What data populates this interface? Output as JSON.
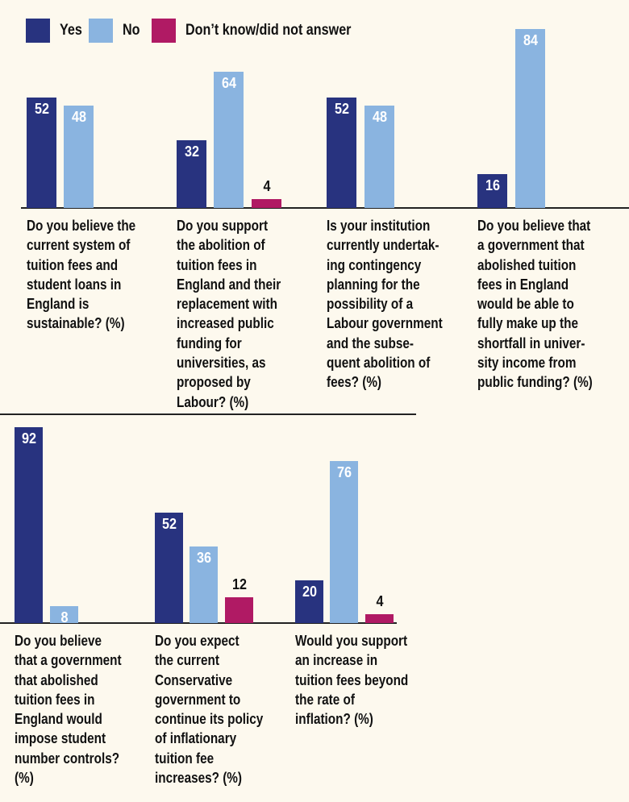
{
  "colors": {
    "yes": "#28337f",
    "no": "#8ab4e0",
    "dont_know": "#b01a64"
  },
  "legend": [
    {
      "key": "yes",
      "label": "Yes"
    },
    {
      "key": "no",
      "label": "No"
    },
    {
      "key": "dont_know",
      "label": "Don’t know/did not answer"
    }
  ],
  "chart_data": [
    {
      "type": "bar",
      "ylabel": "%",
      "ylim": [
        0,
        100
      ],
      "series_names": [
        "Yes",
        "No",
        "Don’t know/did not answer"
      ],
      "values": [
        52,
        48,
        null
      ],
      "question_lines": [
        "Do you believe the",
        "current system of",
        "tuition fees and",
        "student loans in",
        "England is",
        "sustainable? (%)"
      ]
    },
    {
      "type": "bar",
      "ylabel": "%",
      "ylim": [
        0,
        100
      ],
      "series_names": [
        "Yes",
        "No",
        "Don’t know/did not answer"
      ],
      "values": [
        32,
        64,
        4
      ],
      "question_lines": [
        "Do you support",
        "the abolition of",
        "tuition fees in",
        "England and their",
        "replacement with",
        "increased public",
        "funding for",
        "universities, as",
        "proposed by",
        "Labour? (%)"
      ]
    },
    {
      "type": "bar",
      "ylabel": "%",
      "ylim": [
        0,
        100
      ],
      "series_names": [
        "Yes",
        "No",
        "Don’t know/did not answer"
      ],
      "values": [
        52,
        48,
        null
      ],
      "question_lines": [
        "Is your institution",
        "currently undertak-",
        "ing contingency",
        "planning for the",
        "possibility of a",
        "Labour government",
        "and the subse-",
        "quent abolition of",
        "fees? (%)"
      ]
    },
    {
      "type": "bar",
      "ylabel": "%",
      "ylim": [
        0,
        100
      ],
      "series_names": [
        "Yes",
        "No",
        "Don’t know/did not answer"
      ],
      "values": [
        16,
        84,
        null
      ],
      "question_lines": [
        "Do you believe that",
        "a government that",
        "abolished tuition",
        "fees in England",
        "would be able to",
        "fully make up the",
        "shortfall in univer-",
        "sity income from",
        "public funding? (%)"
      ]
    },
    {
      "type": "bar",
      "ylabel": "%",
      "ylim": [
        0,
        100
      ],
      "series_names": [
        "Yes",
        "No",
        "Don’t know/did not answer"
      ],
      "values": [
        92,
        8,
        null
      ],
      "question_lines": [
        "Do you believe",
        "that a government",
        "that abolished",
        "tuition fees in",
        "England would",
        "impose student",
        "number controls?",
        "(%)"
      ]
    },
    {
      "type": "bar",
      "ylabel": "%",
      "ylim": [
        0,
        100
      ],
      "series_names": [
        "Yes",
        "No",
        "Don’t know/did not answer"
      ],
      "values": [
        52,
        36,
        12
      ],
      "question_lines": [
        "Do you expect",
        "the current",
        "Conservative",
        "government to",
        "continue its policy",
        "of inflationary",
        "tuition fee",
        "increases? (%)"
      ]
    },
    {
      "type": "bar",
      "ylabel": "%",
      "ylim": [
        0,
        100
      ],
      "series_names": [
        "Yes",
        "No",
        "Don’t know/did not answer"
      ],
      "values": [
        20,
        76,
        4
      ],
      "question_lines": [
        "Would you support",
        "an increase in",
        "tuition fees beyond",
        "the rate of",
        "inflation? (%)"
      ]
    }
  ]
}
